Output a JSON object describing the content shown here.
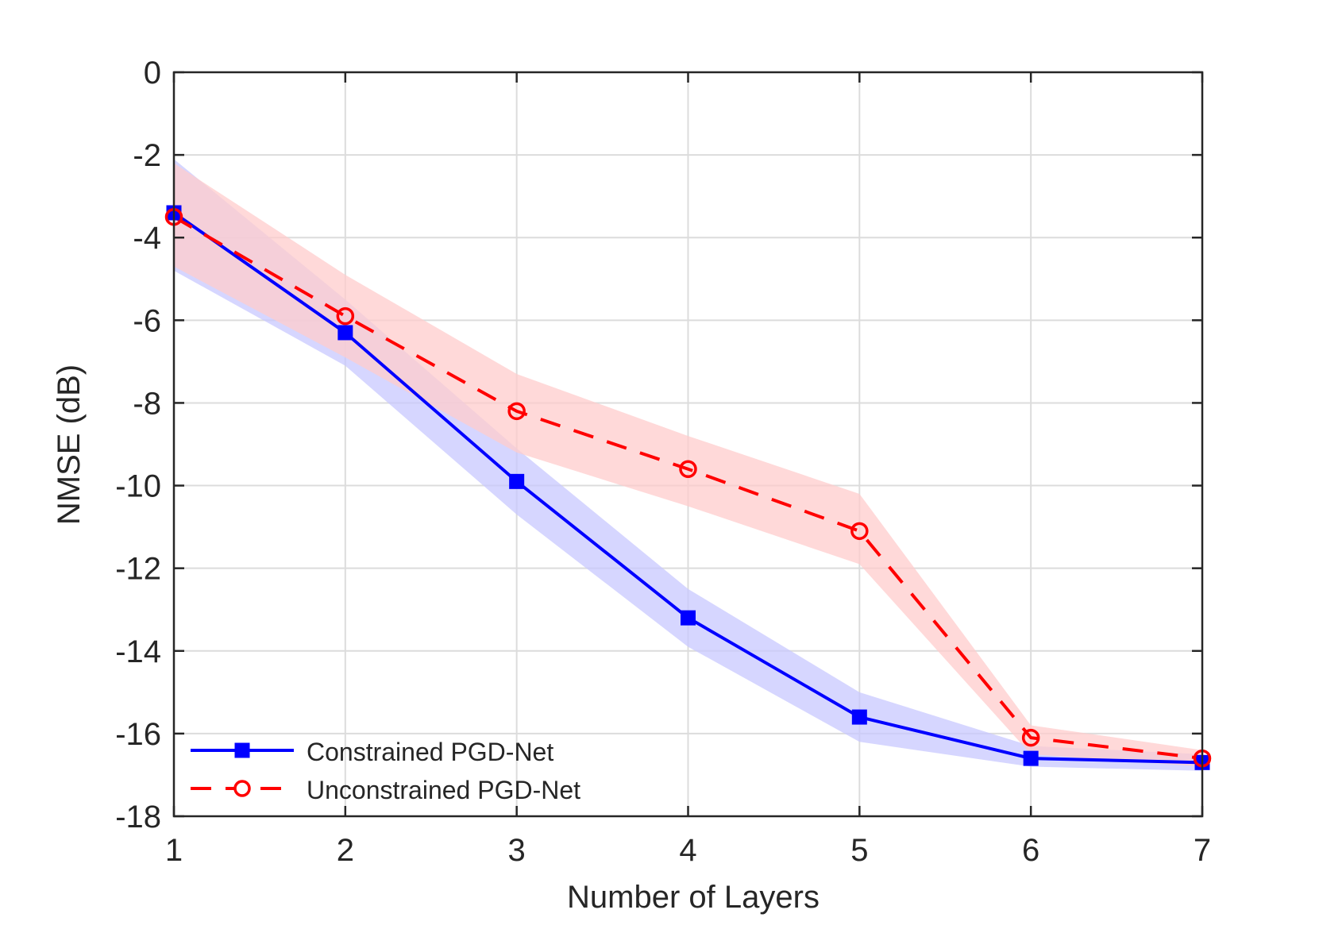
{
  "chart_data": {
    "type": "line",
    "title": "",
    "xlabel": "Number of Layers",
    "ylabel": "NMSE (dB)",
    "xlim": [
      1,
      7
    ],
    "ylim": [
      -18,
      0
    ],
    "xticks": [
      1,
      2,
      3,
      4,
      5,
      6,
      7
    ],
    "yticks": [
      0,
      -2,
      -4,
      -6,
      -8,
      -10,
      -12,
      -14,
      -16,
      -18
    ],
    "grid": true,
    "legend_position": "bottom-left",
    "x": [
      1,
      2,
      3,
      4,
      5,
      6,
      7
    ],
    "series": [
      {
        "name": "Constrained PGD-Net",
        "values": [
          -3.4,
          -6.3,
          -9.9,
          -13.2,
          -15.6,
          -16.6,
          -16.7
        ],
        "upper": [
          -2.1,
          -5.5,
          -9.1,
          -12.5,
          -15.0,
          -16.3,
          -16.5
        ],
        "lower": [
          -4.8,
          -7.1,
          -10.7,
          -13.9,
          -16.2,
          -16.8,
          -16.9
        ],
        "color": "#0000ff",
        "band_color": "#c8c8ff",
        "marker": "square",
        "line_style": "solid"
      },
      {
        "name": "Unconstrained PGD-Net",
        "values": [
          -3.5,
          -5.9,
          -8.2,
          -9.6,
          -11.1,
          -16.1,
          -16.6
        ],
        "upper": [
          -2.2,
          -4.9,
          -7.3,
          -8.8,
          -10.2,
          -15.8,
          -16.4
        ],
        "lower": [
          -4.7,
          -6.9,
          -9.2,
          -10.5,
          -11.9,
          -16.5,
          -16.8
        ],
        "color": "#ff0000",
        "band_color": "#ffcccc",
        "marker": "circle",
        "line_style": "dashed"
      }
    ]
  }
}
